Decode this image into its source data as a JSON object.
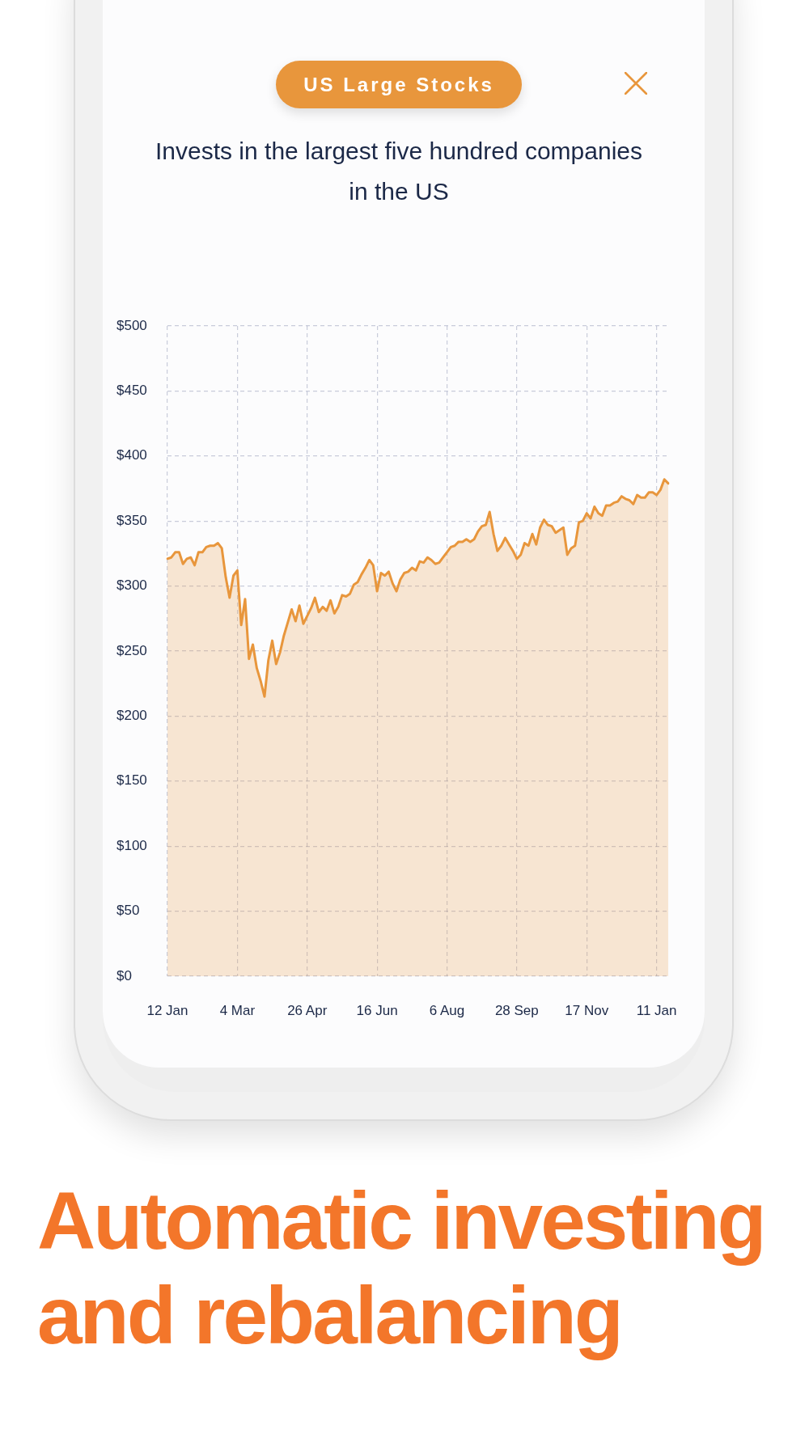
{
  "chart_data": {
    "type": "area",
    "title": "Invests in the largest five hundred companies in the US",
    "annotations": [
      "US Large Stocks",
      "Automatic investing and rebalancing"
    ],
    "categories": [
      "12 Jan",
      null,
      null,
      null,
      null,
      null,
      null,
      null,
      null,
      null,
      null,
      null,
      null,
      null,
      null,
      null,
      null,
      null,
      "4 Mar",
      null,
      null,
      null,
      null,
      null,
      null,
      null,
      null,
      null,
      null,
      null,
      null,
      null,
      null,
      null,
      null,
      null,
      "26 Apr",
      null,
      null,
      null,
      null,
      null,
      null,
      null,
      null,
      null,
      null,
      null,
      null,
      null,
      null,
      null,
      null,
      null,
      "16 Jun",
      null,
      null,
      null,
      null,
      null,
      null,
      null,
      null,
      null,
      null,
      null,
      null,
      null,
      null,
      null,
      null,
      null,
      "6 Aug",
      null,
      null,
      null,
      null,
      null,
      null,
      null,
      null,
      null,
      null,
      null,
      null,
      null,
      null,
      null,
      null,
      null,
      "28 Sep",
      null,
      null,
      null,
      null,
      null,
      null,
      null,
      null,
      null,
      null,
      null,
      null,
      null,
      null,
      null,
      null,
      null,
      "17 Nov",
      null,
      null,
      null,
      null,
      null,
      null,
      null,
      null,
      null,
      null,
      null,
      null,
      null,
      null,
      null,
      null,
      null,
      "11 Jan",
      null,
      null,
      null
    ],
    "values": [
      321,
      322,
      326,
      326,
      317,
      321,
      322,
      316,
      326,
      326,
      330,
      331,
      331,
      333,
      329,
      307,
      291,
      308,
      312,
      270,
      290,
      244,
      255,
      237,
      227,
      215,
      243,
      258,
      240,
      249,
      262,
      272,
      282,
      273,
      285,
      271,
      277,
      283,
      291,
      280,
      284,
      281,
      289,
      279,
      284,
      293,
      292,
      294,
      301,
      303,
      309,
      314,
      320,
      316,
      296,
      310,
      308,
      311,
      302,
      296,
      305,
      310,
      311,
      314,
      312,
      319,
      318,
      322,
      320,
      317,
      318,
      322,
      326,
      330,
      331,
      334,
      334,
      336,
      334,
      336,
      342,
      346,
      347,
      357,
      340,
      327,
      331,
      337,
      332,
      327,
      321,
      324,
      333,
      331,
      340,
      332,
      345,
      351,
      347,
      346,
      341,
      343,
      345,
      324,
      329,
      331,
      349,
      350,
      356,
      352,
      361,
      356,
      354,
      362,
      362,
      364,
      365,
      369,
      367,
      366,
      363,
      370,
      368,
      368,
      372,
      372,
      370,
      374,
      382,
      379
    ],
    "color": "#e8963c",
    "ylim": [
      0,
      500
    ],
    "yticks": [
      {
        "value": 0,
        "label": "$0"
      },
      {
        "value": 50,
        "label": "$50"
      },
      {
        "value": 100,
        "label": "$100"
      },
      {
        "value": 150,
        "label": "$150"
      },
      {
        "value": 200,
        "label": "$200"
      },
      {
        "value": 250,
        "label": "$250"
      },
      {
        "value": 300,
        "label": "$300"
      },
      {
        "value": 350,
        "label": "$350"
      },
      {
        "value": 400,
        "label": "$400"
      },
      {
        "value": 450,
        "label": "$450"
      },
      {
        "value": 500,
        "label": "$500"
      }
    ],
    "grid": true,
    "legend": false,
    "marker": "none"
  }
}
